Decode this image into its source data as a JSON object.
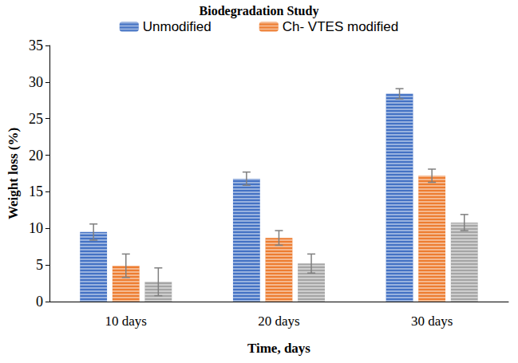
{
  "chart_data": {
    "type": "bar",
    "title": "Biodegradation Study",
    "x_label": "Time, days",
    "y_label": "Weight loss (%)",
    "categories": [
      "10 days",
      "20 days",
      "30 days"
    ],
    "series": [
      {
        "name": "Unmodified",
        "color": "#4472c4",
        "values": [
          9.5,
          16.8,
          28.4
        ],
        "errors": [
          1.1,
          0.9,
          0.7
        ]
      },
      {
        "name": "Ch- VTES modified",
        "color": "#ed7d31",
        "values": [
          4.9,
          8.7,
          17.2
        ],
        "errors": [
          1.6,
          1.0,
          0.9
        ]
      },
      {
        "color": "#a5a5a5",
        "values": [
          2.7,
          5.2,
          10.8
        ],
        "errors": [
          1.9,
          1.3,
          1.1
        ]
      }
    ],
    "ylim": [
      0,
      35
    ],
    "yticks": [
      0,
      5,
      10,
      15,
      20,
      25,
      30,
      35
    ],
    "grid": false,
    "legend": "top"
  }
}
